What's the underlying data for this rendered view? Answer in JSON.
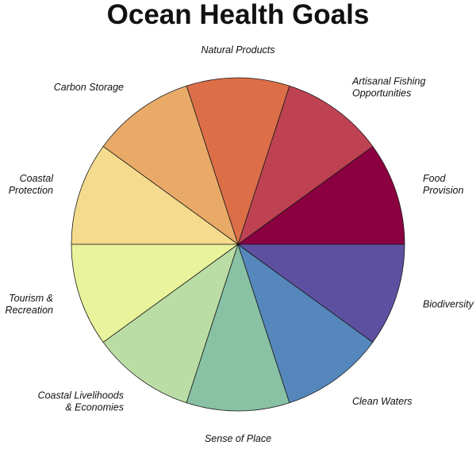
{
  "chart_data": {
    "type": "pie",
    "title": "Ocean Health Goals",
    "legend": "none (labels placed around the pie)",
    "slices": [
      {
        "label": "Food\nProvision",
        "value": 1,
        "color": "#8B0040"
      },
      {
        "label": "Artisanal Fishing\nOpportunities",
        "value": 1,
        "color": "#BE4252"
      },
      {
        "label": "Natural Products",
        "value": 1,
        "color": "#DC6E48"
      },
      {
        "label": "Carbon Storage",
        "value": 1,
        "color": "#E9AA68"
      },
      {
        "label": "Coastal\nProtection",
        "value": 1,
        "color": "#F5DB8D"
      },
      {
        "label": "Tourism &\nRecreation",
        "value": 1,
        "color": "#E9F39C"
      },
      {
        "label": "Coastal Livelihoods\n& Economies",
        "value": 1,
        "color": "#BADDA5"
      },
      {
        "label": "Sense of Place",
        "value": 1,
        "color": "#88C1A4"
      },
      {
        "label": "Clean Waters",
        "value": 1,
        "color": "#5687BC"
      },
      {
        "label": "Biodiversity",
        "value": 1,
        "color": "#5E50A0"
      }
    ],
    "slice_order": "counterclockwise from 3 o'clock"
  }
}
